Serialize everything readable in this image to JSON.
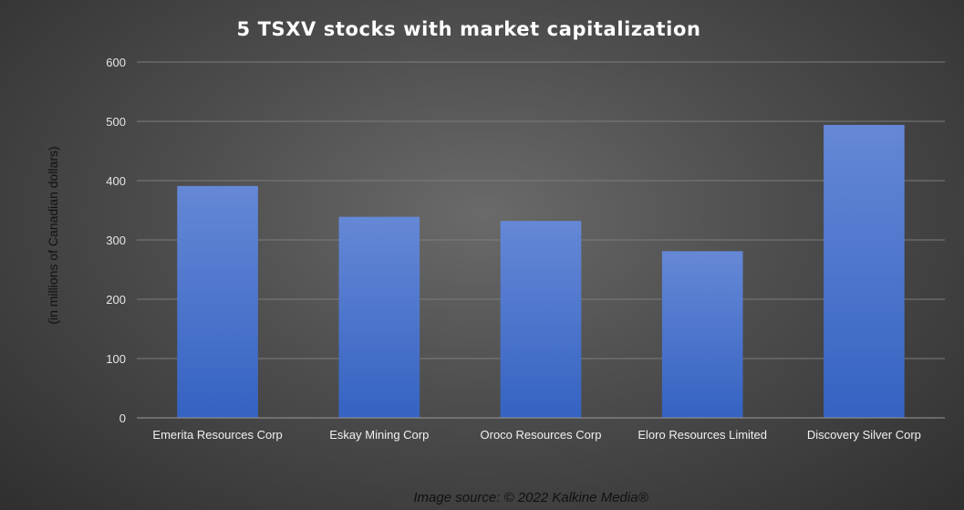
{
  "chart_data": {
    "type": "bar",
    "title": "5 TSXV stocks with market capitalization",
    "ylabel": "(in millions of Canadian dollars)",
    "xlabel": "",
    "categories": [
      "Emerita Resources Corp",
      "Eskay Mining Corp",
      "Oroco Resources Corp",
      "Eloro Resources Limited",
      "Discovery Silver Corp"
    ],
    "values": [
      391,
      339,
      332,
      281,
      494
    ],
    "ylim": [
      0,
      600
    ],
    "yticks": [
      "0",
      "100",
      "200",
      "300",
      "400",
      "500",
      "600"
    ],
    "grid": true,
    "bar_color": "#4a78d0",
    "source": "Image source: © 2022 Kalkine Media®"
  }
}
